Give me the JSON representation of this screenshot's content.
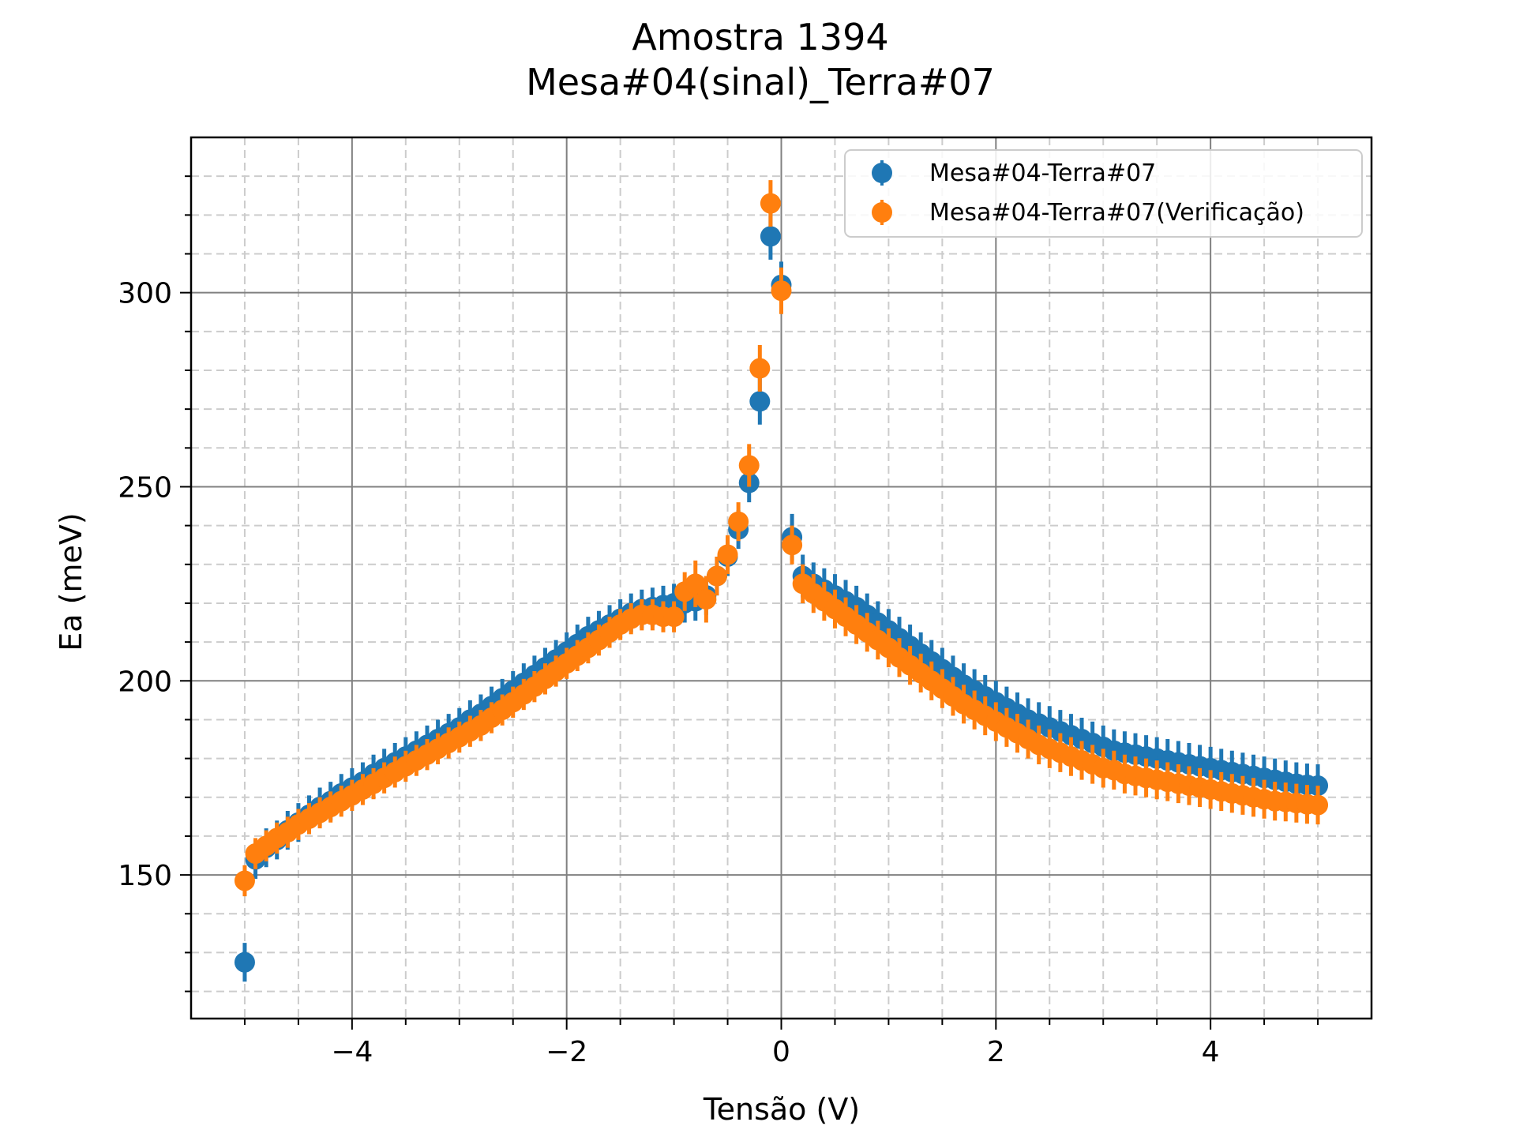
{
  "chart_data": {
    "type": "scatter",
    "title": "Amostra 1394",
    "subtitle": "Mesa#04(sinal)_Terra#07",
    "xlabel": "Tensão (V)",
    "ylabel": "Ea (meV)",
    "xlim": [
      -5.5,
      5.5
    ],
    "ylim": [
      113,
      340
    ],
    "x_ticks": [
      -4,
      -2,
      0,
      2,
      4
    ],
    "x_tick_labels": [
      "−4",
      "−2",
      "0",
      "2",
      "4"
    ],
    "y_ticks": [
      150,
      200,
      250,
      300
    ],
    "y_tick_labels": [
      "150",
      "200",
      "250",
      "300"
    ],
    "grid": true,
    "minor_grid": true,
    "legend_position": "top-right",
    "series": [
      {
        "name": "Mesa#04-Terra#07",
        "color": "#1f77b4",
        "x": [
          -5.0,
          -4.9,
          -4.8,
          -4.7,
          -4.6,
          -4.5,
          -4.4,
          -4.3,
          -4.2,
          -4.1,
          -4.0,
          -3.9,
          -3.8,
          -3.7,
          -3.6,
          -3.5,
          -3.4,
          -3.3,
          -3.2,
          -3.1,
          -3.0,
          -2.9,
          -2.8,
          -2.7,
          -2.6,
          -2.5,
          -2.4,
          -2.3,
          -2.2,
          -2.1,
          -2.0,
          -1.9,
          -1.8,
          -1.7,
          -1.6,
          -1.5,
          -1.4,
          -1.3,
          -1.2,
          -1.1,
          -1.0,
          -0.9,
          -0.8,
          -0.7,
          -0.6,
          -0.5,
          -0.4,
          -0.3,
          -0.2,
          -0.1,
          0.0,
          0.1,
          0.2,
          0.3,
          0.4,
          0.5,
          0.6,
          0.7,
          0.8,
          0.9,
          1.0,
          1.1,
          1.2,
          1.3,
          1.4,
          1.5,
          1.6,
          1.7,
          1.8,
          1.9,
          2.0,
          2.1,
          2.2,
          2.3,
          2.4,
          2.5,
          2.6,
          2.7,
          2.8,
          2.9,
          3.0,
          3.1,
          3.2,
          3.3,
          3.4,
          3.5,
          3.6,
          3.7,
          3.8,
          3.9,
          4.0,
          4.1,
          4.2,
          4.3,
          4.4,
          4.5,
          4.6,
          4.7,
          4.8,
          4.9,
          5.0
        ],
        "y": [
          127.5,
          154.0,
          157.0,
          159.0,
          161.5,
          163.5,
          165.5,
          167.5,
          169.0,
          171.0,
          172.5,
          174.0,
          176.0,
          177.5,
          179.0,
          180.5,
          182.0,
          183.5,
          185.0,
          186.5,
          188.0,
          190.0,
          191.5,
          193.5,
          195.5,
          197.5,
          199.5,
          201.5,
          203.5,
          205.5,
          207.5,
          209.5,
          211.5,
          213.0,
          214.5,
          216.0,
          217.5,
          218.5,
          219.0,
          219.5,
          220.0,
          220.0,
          220.5,
          222.0,
          227.0,
          232.0,
          239.0,
          251.0,
          272.0,
          314.5,
          302.0,
          237.0,
          227.0,
          225.0,
          223.5,
          222.0,
          220.5,
          219.0,
          217.0,
          215.0,
          213.0,
          211.0,
          209.0,
          207.0,
          205.0,
          203.0,
          201.0,
          199.0,
          197.5,
          196.0,
          194.5,
          193.0,
          191.5,
          190.0,
          189.0,
          188.0,
          187.0,
          186.0,
          185.0,
          184.0,
          183.0,
          182.0,
          181.5,
          181.0,
          180.5,
          180.0,
          179.5,
          179.0,
          178.5,
          178.0,
          177.5,
          177.0,
          176.5,
          176.0,
          175.5,
          175.0,
          174.5,
          174.0,
          173.5,
          173.2,
          173.0
        ],
        "err": [
          5.0,
          5.0,
          5.0,
          5.0,
          5.0,
          5.0,
          5.0,
          5.0,
          5.0,
          5.0,
          5.0,
          5.0,
          5.0,
          5.0,
          5.0,
          5.0,
          5.0,
          5.0,
          5.0,
          5.0,
          5.0,
          5.0,
          5.0,
          5.0,
          5.0,
          5.0,
          5.0,
          5.0,
          5.0,
          5.0,
          5.0,
          5.0,
          5.0,
          5.0,
          5.0,
          5.0,
          5.0,
          5.0,
          5.0,
          5.0,
          5.0,
          5.0,
          5.0,
          5.0,
          5.0,
          5.0,
          5.0,
          5.0,
          6.0,
          6.0,
          6.0,
          6.0,
          5.5,
          5.5,
          5.5,
          5.5,
          5.5,
          5.5,
          5.5,
          5.5,
          5.5,
          5.5,
          5.5,
          5.5,
          5.5,
          5.5,
          5.5,
          5.5,
          5.5,
          5.5,
          5.5,
          5.5,
          5.5,
          5.5,
          5.5,
          5.5,
          5.5,
          5.5,
          5.5,
          5.5,
          5.5,
          5.5,
          5.5,
          5.5,
          5.5,
          5.5,
          5.5,
          5.5,
          5.5,
          5.5,
          5.5,
          5.5,
          5.5,
          5.5,
          5.5,
          5.5,
          5.5,
          5.5,
          5.5,
          5.5,
          5.5
        ]
      },
      {
        "name": "Mesa#04-Terra#07(Verificação)",
        "color": "#ff7f0e",
        "x": [
          -5.0,
          -4.9,
          -4.8,
          -4.7,
          -4.6,
          -4.5,
          -4.4,
          -4.3,
          -4.2,
          -4.1,
          -4.0,
          -3.9,
          -3.8,
          -3.7,
          -3.6,
          -3.5,
          -3.4,
          -3.3,
          -3.2,
          -3.1,
          -3.0,
          -2.9,
          -2.8,
          -2.7,
          -2.6,
          -2.5,
          -2.4,
          -2.3,
          -2.2,
          -2.1,
          -2.0,
          -1.9,
          -1.8,
          -1.7,
          -1.6,
          -1.5,
          -1.4,
          -1.3,
          -1.2,
          -1.1,
          -1.0,
          -0.9,
          -0.8,
          -0.7,
          -0.6,
          -0.5,
          -0.4,
          -0.3,
          -0.2,
          -0.1,
          0.0,
          0.1,
          0.2,
          0.3,
          0.4,
          0.5,
          0.6,
          0.7,
          0.8,
          0.9,
          1.0,
          1.1,
          1.2,
          1.3,
          1.4,
          1.5,
          1.6,
          1.7,
          1.8,
          1.9,
          2.0,
          2.1,
          2.2,
          2.3,
          2.4,
          2.5,
          2.6,
          2.7,
          2.8,
          2.9,
          3.0,
          3.1,
          3.2,
          3.3,
          3.4,
          3.5,
          3.6,
          3.7,
          3.8,
          3.9,
          4.0,
          4.1,
          4.2,
          4.3,
          4.4,
          4.5,
          4.6,
          4.7,
          4.8,
          4.9,
          5.0
        ],
        "y": [
          148.5,
          155.5,
          157.5,
          159.5,
          161.0,
          163.0,
          164.5,
          166.0,
          167.5,
          169.0,
          170.5,
          172.0,
          173.5,
          175.0,
          176.5,
          178.0,
          179.5,
          181.0,
          182.5,
          184.0,
          185.5,
          187.0,
          188.5,
          190.5,
          192.5,
          194.5,
          196.5,
          198.5,
          200.5,
          202.5,
          204.5,
          206.5,
          208.5,
          210.5,
          212.5,
          214.5,
          216.0,
          217.0,
          217.0,
          216.5,
          216.5,
          223.0,
          225.0,
          221.0,
          227.0,
          232.5,
          241.0,
          255.5,
          280.5,
          323.0,
          300.5,
          235.0,
          225.0,
          222.5,
          220.5,
          218.5,
          216.5,
          214.5,
          212.5,
          210.5,
          208.5,
          206.0,
          204.0,
          202.0,
          200.0,
          198.0,
          196.0,
          194.0,
          192.5,
          191.0,
          189.5,
          188.0,
          186.5,
          185.0,
          183.5,
          182.5,
          181.5,
          180.5,
          179.5,
          178.5,
          177.5,
          177.0,
          176.0,
          175.5,
          175.0,
          174.5,
          174.0,
          173.5,
          173.0,
          172.5,
          172.0,
          171.5,
          171.0,
          170.5,
          170.0,
          169.5,
          169.0,
          168.8,
          168.5,
          168.2,
          168.0
        ],
        "err": [
          4.0,
          4.0,
          4.0,
          4.0,
          4.0,
          4.0,
          4.0,
          4.0,
          4.0,
          4.0,
          4.0,
          4.0,
          4.0,
          4.0,
          4.0,
          4.0,
          4.0,
          4.0,
          4.0,
          4.0,
          4.0,
          4.0,
          4.0,
          4.0,
          4.0,
          4.0,
          4.0,
          4.0,
          4.0,
          4.0,
          4.0,
          4.0,
          4.0,
          4.0,
          4.0,
          4.0,
          4.0,
          4.0,
          4.0,
          4.0,
          4.0,
          5.0,
          6.0,
          6.0,
          5.0,
          5.0,
          5.0,
          5.5,
          6.0,
          6.0,
          6.0,
          5.0,
          5.0,
          5.0,
          5.0,
          5.0,
          5.0,
          5.0,
          5.0,
          5.0,
          5.0,
          5.0,
          5.0,
          5.0,
          5.0,
          5.0,
          5.0,
          5.0,
          5.0,
          5.0,
          5.0,
          5.0,
          5.0,
          5.0,
          5.0,
          5.0,
          5.0,
          5.0,
          5.0,
          5.0,
          5.0,
          5.0,
          5.0,
          5.0,
          5.0,
          5.0,
          5.0,
          5.0,
          5.0,
          5.0,
          5.0,
          5.0,
          5.0,
          5.0,
          5.0,
          5.0,
          5.0,
          5.0,
          5.0,
          5.0,
          5.0
        ]
      }
    ]
  }
}
